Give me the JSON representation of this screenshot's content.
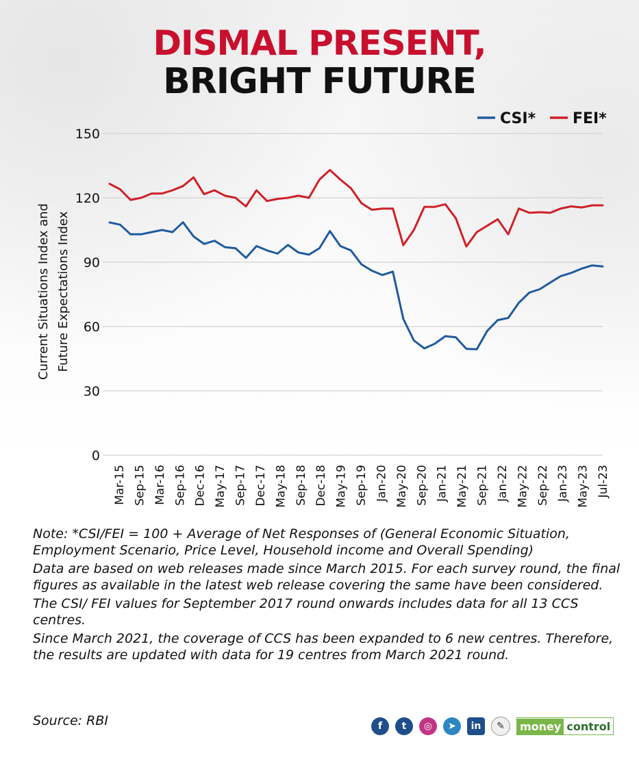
{
  "title": {
    "line1": "DISMAL PRESENT,",
    "line2": "BRIGHT FUTURE"
  },
  "colors": {
    "csi": "#1f5a9e",
    "fei": "#cf2027",
    "title_red": "#c8102e"
  },
  "chart_data": {
    "type": "line",
    "ylabel_line1": "Current Situations Index and",
    "ylabel_line2": "Future Expectations Index",
    "xlabel": "",
    "ylim": [
      0,
      150
    ],
    "yticks": [
      0,
      30,
      60,
      90,
      120,
      150
    ],
    "grid": true,
    "legend_position": "top-right",
    "xtick_labels": [
      "Mar-15",
      "Sep-15",
      "Mar-16",
      "Sep-16",
      "Dec-16",
      "May-17",
      "Sep-17",
      "Dec-17",
      "May-18",
      "Sep-18",
      "Dec-18",
      "May-19",
      "Sep-19",
      "Jan-20",
      "May-20",
      "Sep-20",
      "Jan-21",
      "May-21",
      "Sep-21",
      "Jan-22",
      "May-22",
      "Sep-22",
      "Jan-23",
      "May-23",
      "Jul-23"
    ],
    "series": [
      {
        "name": "CSI*",
        "color": "#1f5a9e",
        "values": [
          108.5,
          107.5,
          103,
          103,
          104,
          105,
          104,
          108.6,
          102,
          98.5,
          100,
          97,
          96.5,
          92,
          97.5,
          95.5,
          94,
          98,
          94.5,
          93.5,
          96.5,
          104.5,
          97.5,
          95.5,
          89,
          86,
          84,
          85.6,
          63.5,
          53.5,
          49.8,
          52,
          55.5,
          55,
          49.6,
          49.4,
          58,
          63,
          64,
          71,
          75.8,
          77.4,
          80.5,
          83.5,
          85,
          87,
          88.5,
          88
        ]
      },
      {
        "name": "FEI*",
        "color": "#cf2027",
        "values": [
          126.5,
          124,
          119,
          120,
          122,
          122,
          123.5,
          125.5,
          129.5,
          121.7,
          123.5,
          121,
          120,
          116,
          123.5,
          118.5,
          119.5,
          120,
          121,
          120,
          128.5,
          133,
          128.5,
          124.5,
          117.5,
          114.4,
          115,
          115,
          97.9,
          105,
          115.8,
          115.8,
          117,
          110.5,
          97.3,
          104,
          107,
          110,
          103,
          115,
          113,
          113.3,
          113,
          115,
          116,
          115.5,
          116.5,
          116.5
        ]
      }
    ]
  },
  "notes": [
    "Note: *CSI/FEI = 100 + Average of Net Responses of (General Economic Situation, Employment Scenario, Price Level, Household income and Overall Spending)",
    "Data are based on web releases made since March 2015. For each survey round, the final figures as available in the latest web release covering the same have been considered.",
    "The CSI/ FEI values for September 2017 round onwards includes data for all 13 CCS centres.",
    "Since March 2021, the coverage of CCS has been expanded to 6 new centres. Therefore, the results are updated with data for 19 centres from March 2021 round."
  ],
  "source": "Source: RBI",
  "social_icons": [
    {
      "name": "facebook-icon",
      "glyph": "f"
    },
    {
      "name": "twitter-icon",
      "glyph": "t"
    },
    {
      "name": "instagram-icon",
      "glyph": "◎"
    },
    {
      "name": "telegram-icon",
      "glyph": "➤"
    },
    {
      "name": "linkedin-icon",
      "glyph": "in"
    },
    {
      "name": "koo-icon",
      "glyph": "✎"
    }
  ],
  "brand": {
    "part1": "money",
    "part2": "control"
  }
}
